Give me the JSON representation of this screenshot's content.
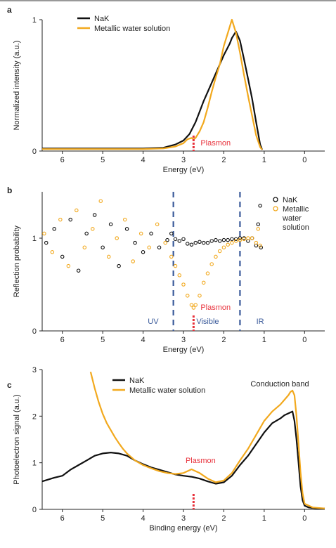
{
  "colors": {
    "nak": "#111111",
    "metallic": "#f2a91e",
    "plasmon": "#e8323c",
    "divider": "#3a5a9a",
    "axis": "#222222",
    "top_rule": "#333333"
  },
  "chart_data": [
    {
      "panel_label": "a",
      "type": "line",
      "ylabel": "Normalized intensity (a.u.)",
      "xlabel": "Energy (eV)",
      "xlim": [
        6.5,
        -0.5
      ],
      "ylim": [
        0,
        1
      ],
      "x_ticks": [
        6,
        5,
        4,
        3,
        2,
        1,
        0
      ],
      "x_tick_labels": [
        "6",
        "5",
        "4",
        "3",
        "2",
        "1",
        "0"
      ],
      "y_ticks": [
        0,
        1
      ],
      "y_tick_labels": [
        "0",
        "1"
      ],
      "legend": [
        "NaK",
        "Metallic water solution"
      ],
      "annotation": {
        "text": "Plasmon",
        "x": 2.75
      },
      "series": [
        {
          "name": "NaK",
          "color_key": "nak",
          "x": [
            6.5,
            6.0,
            5.0,
            4.0,
            3.5,
            3.2,
            3.0,
            2.85,
            2.7,
            2.6,
            2.5,
            2.4,
            2.3,
            2.2,
            2.1,
            2.0,
            1.95,
            1.85,
            1.8,
            1.7,
            1.6,
            1.5,
            1.4,
            1.3,
            1.2,
            1.1,
            1.05
          ],
          "y": [
            0.02,
            0.02,
            0.02,
            0.02,
            0.025,
            0.05,
            0.08,
            0.13,
            0.22,
            0.3,
            0.38,
            0.45,
            0.52,
            0.59,
            0.66,
            0.73,
            0.76,
            0.82,
            0.86,
            0.91,
            0.84,
            0.7,
            0.55,
            0.4,
            0.22,
            0.05,
            0.01
          ]
        },
        {
          "name": "Metallic water solution",
          "color_key": "metallic",
          "x": [
            6.5,
            6.0,
            5.0,
            4.0,
            3.5,
            3.2,
            3.0,
            2.9,
            2.8,
            2.75,
            2.7,
            2.6,
            2.5,
            2.4,
            2.3,
            2.2,
            2.1,
            2.0,
            1.9,
            1.8,
            1.7,
            1.6,
            1.5,
            1.4,
            1.3,
            1.2,
            1.1,
            1.05
          ],
          "y": [
            0.015,
            0.015,
            0.015,
            0.015,
            0.02,
            0.035,
            0.06,
            0.09,
            0.1,
            0.09,
            0.1,
            0.15,
            0.22,
            0.33,
            0.45,
            0.56,
            0.66,
            0.8,
            0.9,
            1.0,
            0.9,
            0.75,
            0.58,
            0.42,
            0.27,
            0.12,
            0.03,
            0.01
          ]
        }
      ]
    },
    {
      "panel_label": "b",
      "type": "scatter",
      "ylabel": "Reflection probability",
      "xlabel": "Energy (eV)",
      "xlim": [
        6.5,
        -0.5
      ],
      "ylim": [
        0,
        1.5
      ],
      "x_ticks": [
        6,
        5,
        4,
        3,
        2,
        1,
        0
      ],
      "x_tick_labels": [
        "6",
        "5",
        "4",
        "3",
        "2",
        "1",
        "0"
      ],
      "y_ticks": [
        0,
        1
      ],
      "y_tick_labels": [
        "0",
        "1"
      ],
      "legend": [
        "NaK",
        "Metallic",
        "water",
        "solution"
      ],
      "annotation": {
        "text": "Plasmon",
        "x": 2.75
      },
      "region_dividers": [
        3.25,
        1.6
      ],
      "region_labels": [
        {
          "text": "UV",
          "x": 3.75
        },
        {
          "text": "Visible",
          "x": 2.4
        },
        {
          "text": "IR",
          "x": 1.1
        }
      ],
      "series": [
        {
          "name": "NaK",
          "color_key": "nak",
          "x": [
            6.4,
            6.2,
            6.0,
            5.8,
            5.6,
            5.4,
            5.2,
            5.0,
            4.8,
            4.6,
            4.4,
            4.2,
            4.0,
            3.8,
            3.6,
            3.4,
            3.3,
            3.2,
            3.1,
            3.0,
            2.9,
            2.8,
            2.7,
            2.6,
            2.5,
            2.4,
            2.3,
            2.2,
            2.1,
            2.0,
            1.9,
            1.8,
            1.7,
            1.6,
            1.5,
            1.4,
            1.3,
            1.2,
            1.15,
            1.1,
            1.08
          ],
          "y": [
            0.95,
            1.1,
            0.8,
            1.2,
            0.65,
            1.05,
            1.25,
            0.9,
            1.15,
            0.7,
            1.1,
            0.95,
            0.85,
            1.05,
            0.9,
            0.98,
            1.05,
            0.99,
            0.97,
            0.99,
            0.94,
            0.93,
            0.95,
            0.96,
            0.95,
            0.95,
            0.97,
            0.98,
            0.97,
            0.98,
            0.98,
            0.99,
            0.99,
            1.0,
            1.0,
            0.97,
            1.0,
            0.92,
            1.15,
            1.35,
            0.9
          ]
        },
        {
          "name": "Metallic water solution",
          "color_key": "metallic",
          "x": [
            6.45,
            6.25,
            6.05,
            5.85,
            5.65,
            5.45,
            5.25,
            5.05,
            4.85,
            4.65,
            4.45,
            4.25,
            4.05,
            3.85,
            3.65,
            3.45,
            3.3,
            3.2,
            3.1,
            3.0,
            2.9,
            2.8,
            2.75,
            2.7,
            2.6,
            2.5,
            2.4,
            2.3,
            2.2,
            2.1,
            2.0,
            1.9,
            1.8,
            1.7,
            1.6,
            1.5,
            1.4,
            1.3,
            1.2,
            1.15,
            1.1
          ],
          "y": [
            1.05,
            0.85,
            1.2,
            0.7,
            1.3,
            0.9,
            1.1,
            1.4,
            0.8,
            1.0,
            1.2,
            0.75,
            1.05,
            0.9,
            1.15,
            0.95,
            0.8,
            0.7,
            0.6,
            0.5,
            0.38,
            0.28,
            0.25,
            0.28,
            0.38,
            0.52,
            0.62,
            0.72,
            0.8,
            0.86,
            0.9,
            0.93,
            0.95,
            0.97,
            0.98,
            0.99,
            1.0,
            1.0,
            0.95,
            1.1,
            0.92
          ]
        }
      ]
    },
    {
      "panel_label": "c",
      "type": "line",
      "ylabel": "Photoelectron signal (a.u.)",
      "xlabel": "Binding energy (eV)",
      "xlim": [
        6.5,
        -0.5
      ],
      "ylim": [
        0,
        3
      ],
      "x_ticks": [
        6,
        5,
        4,
        3,
        2,
        1,
        0
      ],
      "x_tick_labels": [
        "6",
        "5",
        "4",
        "3",
        "2",
        "1",
        "0"
      ],
      "y_ticks": [
        0,
        1,
        2,
        3
      ],
      "y_tick_labels": [
        "0",
        "1",
        "2",
        "3"
      ],
      "legend": [
        "NaK",
        "Metallic water solution"
      ],
      "annotation": {
        "text": "Plasmon",
        "x": 2.75
      },
      "extra_label": "Conduction band",
      "series": [
        {
          "name": "NaK",
          "color_key": "nak",
          "x": [
            6.5,
            6.2,
            6.0,
            5.8,
            5.6,
            5.4,
            5.2,
            5.0,
            4.8,
            4.6,
            4.4,
            4.2,
            4.0,
            3.8,
            3.6,
            3.4,
            3.2,
            3.0,
            2.8,
            2.6,
            2.4,
            2.2,
            2.0,
            1.8,
            1.6,
            1.4,
            1.2,
            1.0,
            0.8,
            0.6,
            0.5,
            0.4,
            0.35,
            0.3,
            0.25,
            0.2,
            0.15,
            0.1,
            0.05,
            0.0,
            -0.1,
            -0.3,
            -0.5
          ],
          "y": [
            0.6,
            0.68,
            0.72,
            0.85,
            0.95,
            1.05,
            1.15,
            1.2,
            1.22,
            1.2,
            1.15,
            1.05,
            0.97,
            0.9,
            0.85,
            0.8,
            0.75,
            0.72,
            0.7,
            0.66,
            0.6,
            0.55,
            0.58,
            0.72,
            0.95,
            1.15,
            1.4,
            1.65,
            1.85,
            1.95,
            2.02,
            2.06,
            2.08,
            2.1,
            1.9,
            1.5,
            1.0,
            0.5,
            0.2,
            0.08,
            0.04,
            0.02,
            0.02
          ]
        },
        {
          "name": "Metallic water solution",
          "color_key": "metallic",
          "x": [
            5.3,
            5.2,
            5.1,
            5.0,
            4.9,
            4.8,
            4.7,
            4.6,
            4.5,
            4.4,
            4.2,
            4.0,
            3.8,
            3.6,
            3.4,
            3.2,
            3.0,
            2.9,
            2.8,
            2.7,
            2.6,
            2.5,
            2.4,
            2.2,
            2.0,
            1.8,
            1.6,
            1.4,
            1.2,
            1.0,
            0.8,
            0.6,
            0.5,
            0.4,
            0.35,
            0.3,
            0.25,
            0.2,
            0.15,
            0.1,
            0.05,
            0.0,
            -0.2,
            -0.5
          ],
          "y": [
            2.95,
            2.6,
            2.3,
            2.05,
            1.85,
            1.7,
            1.55,
            1.42,
            1.3,
            1.2,
            1.05,
            0.95,
            0.88,
            0.82,
            0.78,
            0.76,
            0.78,
            0.82,
            0.86,
            0.82,
            0.78,
            0.72,
            0.66,
            0.58,
            0.62,
            0.78,
            1.05,
            1.3,
            1.6,
            1.9,
            2.1,
            2.25,
            2.35,
            2.45,
            2.52,
            2.55,
            2.45,
            2.0,
            1.4,
            0.8,
            0.35,
            0.12,
            0.04,
            0.02
          ]
        }
      ]
    }
  ]
}
